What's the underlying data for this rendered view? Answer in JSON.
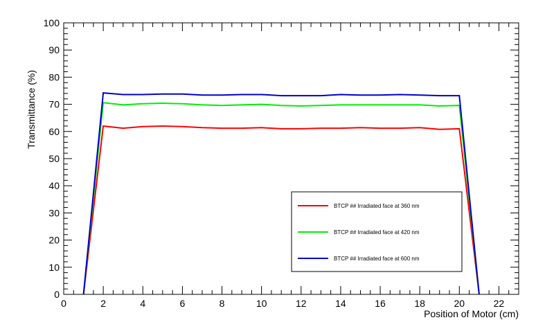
{
  "chart_data": {
    "type": "line",
    "xlabel": "Position of Motor (cm)",
    "ylabel": "Transmittance (%)",
    "xlim": [
      0,
      23
    ],
    "ylim": [
      0,
      100
    ],
    "x_ticks": [
      0,
      2,
      4,
      6,
      8,
      10,
      12,
      14,
      16,
      18,
      20,
      22
    ],
    "y_ticks": [
      0,
      10,
      20,
      30,
      40,
      50,
      60,
      70,
      80,
      90,
      100
    ],
    "grid": false,
    "legend_position": "bottom-right",
    "x": [
      1,
      2,
      3,
      4,
      5,
      6,
      7,
      8,
      9,
      10,
      11,
      12,
      13,
      14,
      15,
      16,
      17,
      18,
      19,
      20,
      21
    ],
    "series": [
      {
        "name": "BTCP ## Irradiated face at 360 nm",
        "color": "#ff0000",
        "values": [
          0,
          62.0,
          61.2,
          61.8,
          62.0,
          61.8,
          61.4,
          61.2,
          61.2,
          61.4,
          61.0,
          61.0,
          61.2,
          61.2,
          61.4,
          61.2,
          61.2,
          61.4,
          60.8,
          61.0,
          0
        ]
      },
      {
        "name": "BTCP ## Irradiated face at 420 nm",
        "color": "#00ee00",
        "values": [
          0,
          70.6,
          69.8,
          70.2,
          70.4,
          70.2,
          69.8,
          69.6,
          69.8,
          70.0,
          69.6,
          69.4,
          69.6,
          69.8,
          69.8,
          69.8,
          69.8,
          69.8,
          69.4,
          69.6,
          0
        ]
      },
      {
        "name": "BTCP ## Irradiated face at 600 nm",
        "color": "#0000cc",
        "values": [
          0,
          74.2,
          73.6,
          73.6,
          73.8,
          73.8,
          73.4,
          73.4,
          73.6,
          73.6,
          73.2,
          73.2,
          73.2,
          73.6,
          73.4,
          73.4,
          73.6,
          73.4,
          73.2,
          73.2,
          0
        ]
      }
    ]
  }
}
